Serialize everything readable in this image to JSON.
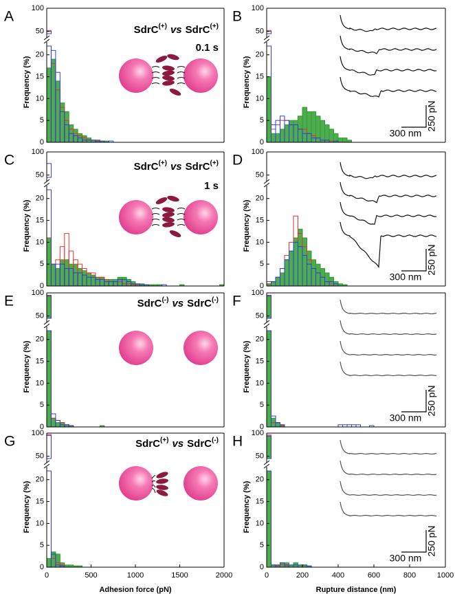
{
  "chart_data": [
    {
      "type": "histogram",
      "panel": "A",
      "ylabel": "Frequency (%)",
      "annotation": {
        "protein_1": "SdrC",
        "sign_1": "(+)",
        "vs": "vs",
        "protein_2": "SdrC",
        "sign_2": "(+)"
      },
      "contact_time": "0.1 s",
      "xlim": [
        0,
        2000
      ],
      "ylim_lower": [
        0,
        22
      ],
      "yticks_lower": [
        0,
        5,
        10,
        15,
        20
      ],
      "ylim_upper": [
        45,
        100
      ],
      "yticks_upper": [
        50,
        100
      ],
      "bins": [
        0,
        50,
        100,
        150,
        200,
        250,
        300,
        350,
        400,
        450,
        500,
        550,
        600,
        650,
        700,
        750,
        800,
        850,
        900,
        950,
        1000
      ],
      "series": [
        {
          "color": "#2e9e2e",
          "filled": true,
          "values": [
            17,
            19,
            14,
            9,
            7,
            4,
            3,
            2,
            1.5,
            1,
            0.5,
            0.5,
            0.3,
            0.3,
            0,
            0,
            0,
            0,
            0,
            0
          ]
        },
        {
          "color": "#e8312f",
          "filled": false,
          "values": [
            52,
            18,
            12,
            8,
            5,
            3,
            2,
            1.5,
            1,
            0.5,
            0.5,
            0.5,
            0,
            0,
            0,
            0,
            0,
            0,
            0,
            0
          ]
        },
        {
          "color": "#2f3fd8",
          "filled": false,
          "values": [
            50,
            21,
            16,
            7,
            4,
            2,
            1.5,
            1,
            0.5,
            0.5,
            0.5,
            0.3,
            0.3,
            0,
            0.3,
            0,
            0,
            0,
            0,
            0
          ]
        }
      ]
    },
    {
      "type": "histogram",
      "panel": "B",
      "ylabel": "Frequency (%)",
      "scale_force": "250 pN",
      "scale_distance": "300 nm",
      "xlim": [
        0,
        1000
      ],
      "ylim_lower": [
        0,
        22
      ],
      "yticks_lower": [
        0,
        5,
        10,
        15,
        20
      ],
      "ylim_upper": [
        45,
        100
      ],
      "yticks_upper": [
        50,
        100
      ],
      "bins": [
        0,
        25,
        50,
        75,
        100,
        125,
        150,
        175,
        200,
        225,
        250,
        275,
        300,
        325,
        350,
        375,
        400,
        425,
        450,
        475,
        500,
        525,
        550,
        575,
        600
      ],
      "series": [
        {
          "color": "#2e9e2e",
          "filled": true,
          "values": [
            15,
            2,
            2,
            3,
            4,
            5,
            5,
            6,
            8,
            7,
            7,
            6,
            5,
            4,
            3,
            2,
            1,
            1,
            0.5,
            0,
            0,
            0,
            0,
            0
          ]
        },
        {
          "color": "#e8312f",
          "filled": false,
          "values": [
            52,
            3,
            4,
            5,
            5,
            4,
            4,
            3,
            3,
            2,
            1.5,
            1,
            0.5,
            0.5,
            0.3,
            0,
            0,
            0,
            0,
            0,
            0,
            0,
            0,
            0
          ]
        },
        {
          "color": "#2f3fd8",
          "filled": false,
          "values": [
            50,
            4,
            5,
            6,
            5,
            4,
            4,
            3,
            2,
            2,
            1,
            1,
            0.5,
            0.5,
            0,
            0.3,
            0,
            0,
            0,
            0,
            0,
            0,
            0,
            0
          ]
        }
      ]
    },
    {
      "type": "histogram",
      "panel": "C",
      "ylabel": "Frequency (%)",
      "annotation": {
        "protein_1": "SdrC",
        "sign_1": "(+)",
        "vs": "vs",
        "protein_2": "SdrC",
        "sign_2": "(+)"
      },
      "contact_time": "1 s",
      "xlim": [
        0,
        2000
      ],
      "ylim_lower": [
        0,
        22
      ],
      "yticks_lower": [
        0,
        5,
        10,
        15,
        20
      ],
      "ylim_upper": [
        45,
        100
      ],
      "yticks_upper": [
        50,
        100
      ],
      "bins": [
        0,
        50,
        100,
        150,
        200,
        250,
        300,
        350,
        400,
        450,
        500,
        550,
        600,
        650,
        700,
        750,
        800,
        850,
        900,
        950,
        1000,
        1050,
        1100,
        1150,
        1200,
        1250,
        1300,
        1350,
        1400,
        1450,
        1500,
        1550,
        1600,
        1650,
        1700,
        1750,
        1800,
        1850,
        1900,
        1950,
        2000
      ],
      "series": [
        {
          "color": "#2e9e2e",
          "filled": true,
          "values": [
            11,
            5,
            4,
            6,
            6,
            5,
            5,
            4,
            3.5,
            3,
            2.5,
            2,
            2,
            1.5,
            1.5,
            1.5,
            2,
            2,
            1.5,
            1,
            0.5,
            0.5,
            0.3,
            0.3,
            0.3,
            0.3,
            0,
            0,
            0,
            0,
            0.3,
            0,
            0,
            0,
            0,
            0,
            0,
            0,
            0,
            0.3
          ]
        },
        {
          "color": "#e8312f",
          "filled": false,
          "values": [
            11,
            5,
            6,
            9,
            12,
            8,
            6,
            5,
            4,
            3,
            3,
            2,
            2,
            1.5,
            1,
            1,
            1,
            0.5,
            0.5,
            0.3,
            0.3,
            0,
            0,
            0,
            0,
            0,
            0,
            0,
            0,
            0,
            0,
            0,
            0,
            0,
            0,
            0,
            0,
            0,
            0,
            0
          ]
        },
        {
          "color": "#2f3fd8",
          "filled": false,
          "values": [
            75,
            5,
            5,
            5,
            4,
            4,
            3,
            3,
            2.5,
            2,
            2,
            1.5,
            1.5,
            1,
            1,
            1,
            1.5,
            1.5,
            1,
            0.5,
            0.5,
            0.3,
            0.3,
            0,
            0,
            0,
            0.3,
            0,
            0,
            0,
            0,
            0,
            0,
            0,
            0,
            0,
            0,
            0,
            0,
            0
          ]
        }
      ]
    },
    {
      "type": "histogram",
      "panel": "D",
      "ylabel": "Frequency (%)",
      "scale_force": "250 pN",
      "scale_distance": "300 nm",
      "xlim": [
        0,
        1000
      ],
      "ylim_lower": [
        0,
        22
      ],
      "yticks_lower": [
        0,
        5,
        10,
        15,
        20
      ],
      "ylim_upper": [
        45,
        100
      ],
      "yticks_upper": [
        50,
        100
      ],
      "bins": [
        0,
        25,
        50,
        75,
        100,
        125,
        150,
        175,
        200,
        225,
        250,
        275,
        300,
        325,
        350,
        375,
        400,
        425,
        450,
        475,
        500,
        525,
        550,
        575,
        600
      ],
      "series": [
        {
          "color": "#2e9e2e",
          "filled": true,
          "values": [
            0.5,
            1,
            2,
            3,
            6,
            8,
            11,
            13,
            11,
            8,
            6,
            5,
            4,
            3,
            2,
            1,
            0.5,
            0.3,
            0,
            0,
            0,
            0,
            0,
            0
          ]
        },
        {
          "color": "#e8312f",
          "filled": false,
          "values": [
            0.5,
            1,
            2,
            4,
            7,
            10,
            16,
            12,
            9,
            6,
            4,
            3,
            2,
            1,
            0.5,
            0,
            0,
            0,
            0,
            0,
            0,
            0,
            0,
            0
          ]
        },
        {
          "color": "#2f3fd8",
          "filled": false,
          "values": [
            1,
            1,
            2,
            4,
            6,
            8,
            10,
            9,
            7,
            5,
            4,
            3,
            2,
            1,
            1,
            0.5,
            0,
            0,
            0,
            0,
            0,
            0,
            0,
            0
          ]
        }
      ]
    },
    {
      "type": "histogram",
      "panel": "E",
      "ylabel": "Frequency (%)",
      "annotation": {
        "protein_1": "SdrC",
        "sign_1": "(-)",
        "vs": "vs",
        "protein_2": "SdrC",
        "sign_2": "(-)"
      },
      "xlim": [
        0,
        2000
      ],
      "ylim_lower": [
        0,
        22
      ],
      "yticks_lower": [
        0,
        5,
        10,
        15,
        20
      ],
      "ylim_upper": [
        45,
        100
      ],
      "yticks_upper": [
        50,
        100
      ],
      "bins": [
        0,
        50,
        100,
        150,
        200,
        250,
        300,
        350,
        400,
        450,
        500,
        550,
        600,
        650,
        700,
        750,
        800,
        850,
        900,
        950,
        1000
      ],
      "series": [
        {
          "color": "#2e9e2e",
          "filled": true,
          "values": [
            95,
            2,
            1,
            1,
            0.5,
            0.3,
            0,
            0,
            0,
            0,
            0,
            0,
            0.3,
            0,
            0,
            0,
            0,
            0,
            0,
            0
          ]
        },
        {
          "color": "#e8312f",
          "filled": false,
          "values": [
            93,
            2,
            1.5,
            1,
            0.5,
            0.3,
            0,
            0,
            0,
            0,
            0,
            0,
            0,
            0,
            0,
            0,
            0,
            0,
            0,
            0
          ]
        },
        {
          "color": "#2f3fd8",
          "filled": false,
          "values": [
            94,
            3,
            1.5,
            0.5,
            0.5,
            0.3,
            0,
            0,
            0,
            0,
            0,
            0,
            0,
            0,
            0,
            0,
            0,
            0,
            0,
            0
          ]
        }
      ]
    },
    {
      "type": "histogram",
      "panel": "F",
      "ylabel": "Frequency (%)",
      "scale_force": "250 pN",
      "scale_distance": "300 nm",
      "xlim": [
        0,
        1000
      ],
      "ylim_lower": [
        0,
        22
      ],
      "yticks_lower": [
        0,
        5,
        10,
        15,
        20
      ],
      "ylim_upper": [
        45,
        100
      ],
      "yticks_upper": [
        50,
        100
      ],
      "bins": [
        0,
        25,
        50,
        75,
        100,
        125,
        150,
        175,
        200,
        225,
        250,
        275,
        300,
        325,
        350,
        375,
        400,
        425,
        450,
        475,
        500,
        525,
        550,
        575,
        600
      ],
      "series": [
        {
          "color": "#2e9e2e",
          "filled": true,
          "values": [
            93,
            2,
            1,
            0.5,
            0,
            0,
            0,
            0,
            0,
            0,
            0,
            0,
            0,
            0,
            0,
            0,
            0,
            0,
            0,
            0,
            0,
            0,
            0,
            0
          ]
        },
        {
          "color": "#e8312f",
          "filled": false,
          "values": [
            95,
            1,
            1,
            0.3,
            0,
            0,
            0,
            0,
            0,
            0,
            0,
            0,
            0,
            0,
            0,
            0,
            0,
            0,
            0,
            0,
            0,
            0,
            0,
            0
          ]
        },
        {
          "color": "#2f3fd8",
          "filled": false,
          "values": [
            94,
            2.5,
            1,
            0.5,
            0,
            0,
            0,
            0,
            0,
            0,
            0,
            0,
            0,
            0,
            0,
            0,
            0.5,
            0.5,
            0.5,
            0.5,
            0.5,
            0,
            0,
            0.3
          ]
        }
      ]
    },
    {
      "type": "histogram",
      "panel": "G",
      "ylabel": "Frequency (%)",
      "xlabel": "Adhesion force (pN)",
      "annotation": {
        "protein_1": "SdrC",
        "sign_1": "(+)",
        "vs": "vs",
        "protein_2": "SdrC",
        "sign_2": "(-)"
      },
      "xlim": [
        0,
        2000
      ],
      "xticks": [
        0,
        500,
        1000,
        1500,
        2000
      ],
      "ylim_lower": [
        0,
        22
      ],
      "yticks_lower": [
        0,
        5,
        10,
        15,
        20
      ],
      "ylim_upper": [
        45,
        100
      ],
      "yticks_upper": [
        50,
        100
      ],
      "bins": [
        0,
        50,
        100,
        150,
        200,
        250,
        300,
        350,
        400,
        450,
        500,
        550,
        600,
        650,
        700,
        750,
        800,
        850,
        900,
        950,
        1000
      ],
      "series": [
        {
          "color": "#2e9e2e",
          "filled": true,
          "values": [
            2,
            3.5,
            3,
            1,
            0.5,
            0.5,
            0.3,
            0.3,
            0,
            0,
            0,
            0,
            0,
            0,
            0,
            0,
            0,
            0,
            0,
            0
          ]
        },
        {
          "color": "#e8312f",
          "filled": false,
          "values": [
            97,
            2,
            1,
            0.5,
            0,
            0,
            0,
            0,
            0,
            0,
            0,
            0,
            0,
            0,
            0,
            0,
            0,
            0,
            0,
            0
          ]
        },
        {
          "color": "#2f3fd8",
          "filled": false,
          "values": [
            95,
            3,
            0.5,
            0.3,
            0,
            0,
            0,
            0,
            0,
            0,
            0,
            0,
            0,
            0,
            0,
            0,
            0,
            0,
            0,
            0
          ]
        }
      ]
    },
    {
      "type": "histogram",
      "panel": "H",
      "ylabel": "Frequency (%)",
      "xlabel": "Rupture distance (nm)",
      "scale_force": "250 pN",
      "scale_distance": "300 nm",
      "xlim": [
        0,
        1000
      ],
      "xticks": [
        0,
        200,
        400,
        600,
        800,
        1000
      ],
      "ylim_lower": [
        0,
        22
      ],
      "yticks_lower": [
        0,
        5,
        10,
        15,
        20
      ],
      "ylim_upper": [
        45,
        100
      ],
      "yticks_upper": [
        50,
        100
      ],
      "bins": [
        0,
        25,
        50,
        75,
        100,
        125,
        150,
        175,
        200,
        225,
        250,
        275,
        300,
        325,
        350,
        375,
        400,
        425,
        450,
        475,
        500,
        525,
        550,
        575,
        600
      ],
      "series": [
        {
          "color": "#2e9e2e",
          "filled": true,
          "values": [
            93,
            0.5,
            0.5,
            1,
            1,
            0.5,
            1,
            0.5,
            0.5,
            0.3,
            0,
            0,
            0,
            0,
            0,
            0,
            0,
            0,
            0,
            0,
            0,
            0,
            0,
            0
          ]
        },
        {
          "color": "#e8312f",
          "filled": false,
          "values": [
            96,
            0.5,
            0.3,
            0.5,
            0.3,
            0,
            0,
            0,
            0,
            0,
            0,
            0,
            0,
            0,
            0,
            0,
            0,
            0,
            0,
            0,
            0,
            0,
            0,
            0
          ]
        },
        {
          "color": "#2f3fd8",
          "filled": false,
          "values": [
            94,
            0.5,
            0.5,
            1,
            0.5,
            0.5,
            0.5,
            0.5,
            0.5,
            0.3,
            0,
            0,
            0,
            0,
            0,
            0,
            0,
            0,
            0,
            0,
            0,
            0,
            0,
            0
          ]
        }
      ]
    }
  ]
}
